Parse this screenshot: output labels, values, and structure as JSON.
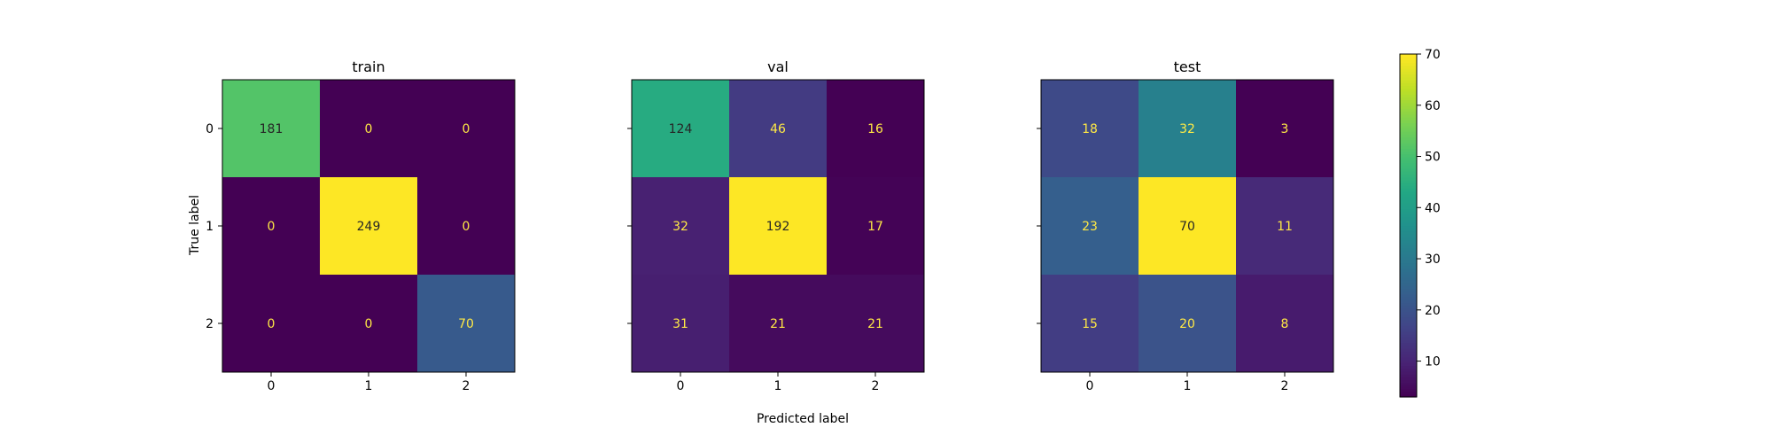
{
  "chart_data": {
    "type": "heatmap",
    "figure_xlabel": "Predicted label",
    "figure_ylabel": "True label",
    "x_ticks": [
      "0",
      "1",
      "2"
    ],
    "y_ticks": [
      "0",
      "1",
      "2"
    ],
    "colormap": "viridis",
    "panels": [
      {
        "title": "train",
        "matrix": [
          [
            181,
            0,
            0
          ],
          [
            0,
            249,
            0
          ],
          [
            0,
            0,
            70
          ]
        ]
      },
      {
        "title": "val",
        "matrix": [
          [
            124,
            46,
            16
          ],
          [
            32,
            192,
            17
          ],
          [
            31,
            21,
            21
          ]
        ]
      },
      {
        "title": "test",
        "matrix": [
          [
            18,
            32,
            3
          ],
          [
            23,
            70,
            11
          ],
          [
            15,
            20,
            8
          ]
        ]
      }
    ],
    "colorbar": {
      "min": 3,
      "max": 70,
      "ticks": [
        10,
        20,
        30,
        40,
        50,
        60,
        70
      ]
    },
    "low_text_color": "#ffe945",
    "high_text_color": "#262626"
  }
}
